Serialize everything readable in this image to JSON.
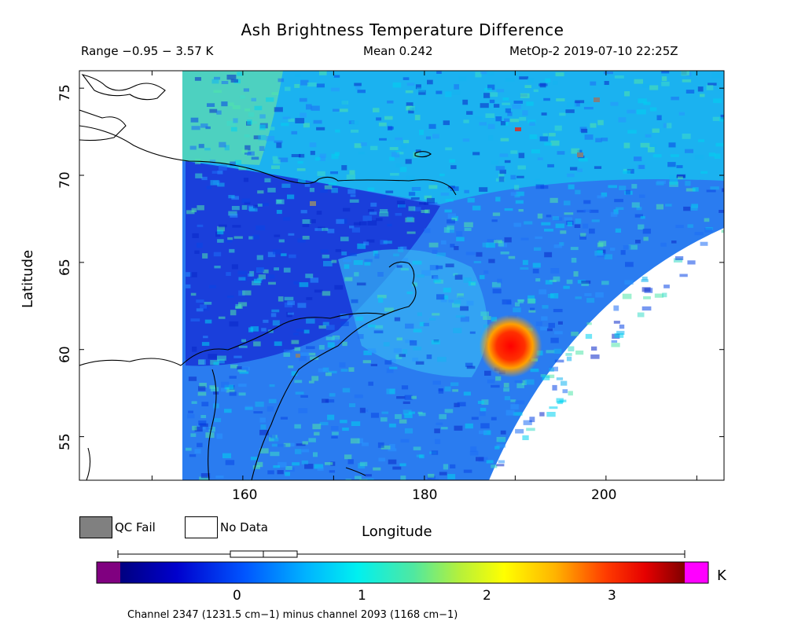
{
  "title": "Ash Brightness Temperature Difference",
  "header": {
    "range": "Range −0.95 − 3.57 K",
    "mean": "Mean 0.242",
    "satellite_time": "MetOp-2 2019-07-10 22:25Z"
  },
  "map": {
    "ylabel": "Latitude",
    "xlabel": "Longitude",
    "lat_ticks": [
      "55",
      "60",
      "65",
      "70",
      "75"
    ],
    "lon_ticks": [
      "160",
      "180",
      "200"
    ],
    "lon_range": [
      142,
      213
    ],
    "lat_range": [
      52.5,
      76
    ],
    "hotspot_lon": 189.5,
    "hotspot_lat": 60.2
  },
  "legend": {
    "qc_fail": "QC Fail",
    "no_data": "No Data",
    "qc_color": "#808080"
  },
  "colorbar": {
    "ticks": [
      "0",
      "1",
      "2",
      "3"
    ],
    "unit": "K",
    "caption": "Channel 2347 (1231.5 cm−1) minus channel 2093 (1168 cm−1)",
    "under_color": "#800080",
    "over_color": "#ff00ff"
  }
}
